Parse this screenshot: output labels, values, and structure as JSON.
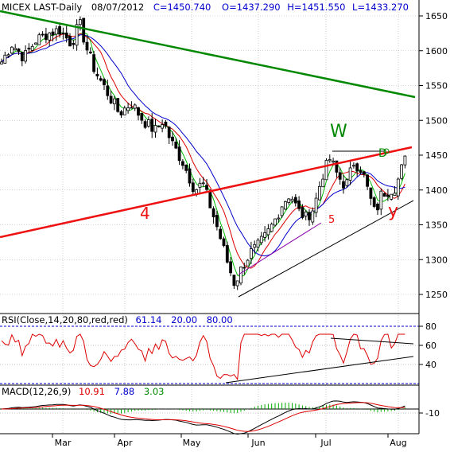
{
  "chart_data": {
    "type": "candlestick",
    "header": {
      "symbol": "MICEX LAST-Daily",
      "date": "08/07/2012",
      "close": "C=1450.740",
      "open": "O=1437.290",
      "high": "H=1451.550",
      "low": "L=1433.270"
    },
    "price_axis": {
      "ylim": [
        1230,
        1680
      ],
      "ticks": [
        "1650",
        "1600",
        "1550",
        "1500",
        "1450",
        "1400",
        "1350",
        "1300",
        "1250"
      ]
    },
    "time_axis": {
      "months": [
        "Mar",
        "Apr",
        "May",
        "Jun",
        "Jul",
        "Aug"
      ]
    },
    "annotations": {
      "wave_w": "W",
      "label_d": "D",
      "label_4": "4",
      "label_5": "5",
      "wave_y": "y"
    },
    "rsi": {
      "header": {
        "name": "RSI(Close,14,20,80,red,red)",
        "value": "61.14",
        "lower": "20.00",
        "upper": "80.00"
      },
      "ylim": [
        20,
        85
      ],
      "ticks": [
        "80",
        "60",
        "40"
      ]
    },
    "macd": {
      "header": {
        "name": "MACD(12,26,9)",
        "macd": "10.91",
        "signal": "7.88",
        "histogram": "3.03"
      },
      "ticks": [
        "-10"
      ]
    },
    "colors": {
      "up_candle": "#ffffff",
      "down_candle": "#000000",
      "ma_fast": "#00bb00",
      "ma_mid": "#dd0000",
      "ma_slow": "#0000cc",
      "trend_green": "#008800",
      "trend_red": "#ee1111",
      "rsi_line": "#dd0000",
      "header_value": "#0000cc"
    }
  }
}
